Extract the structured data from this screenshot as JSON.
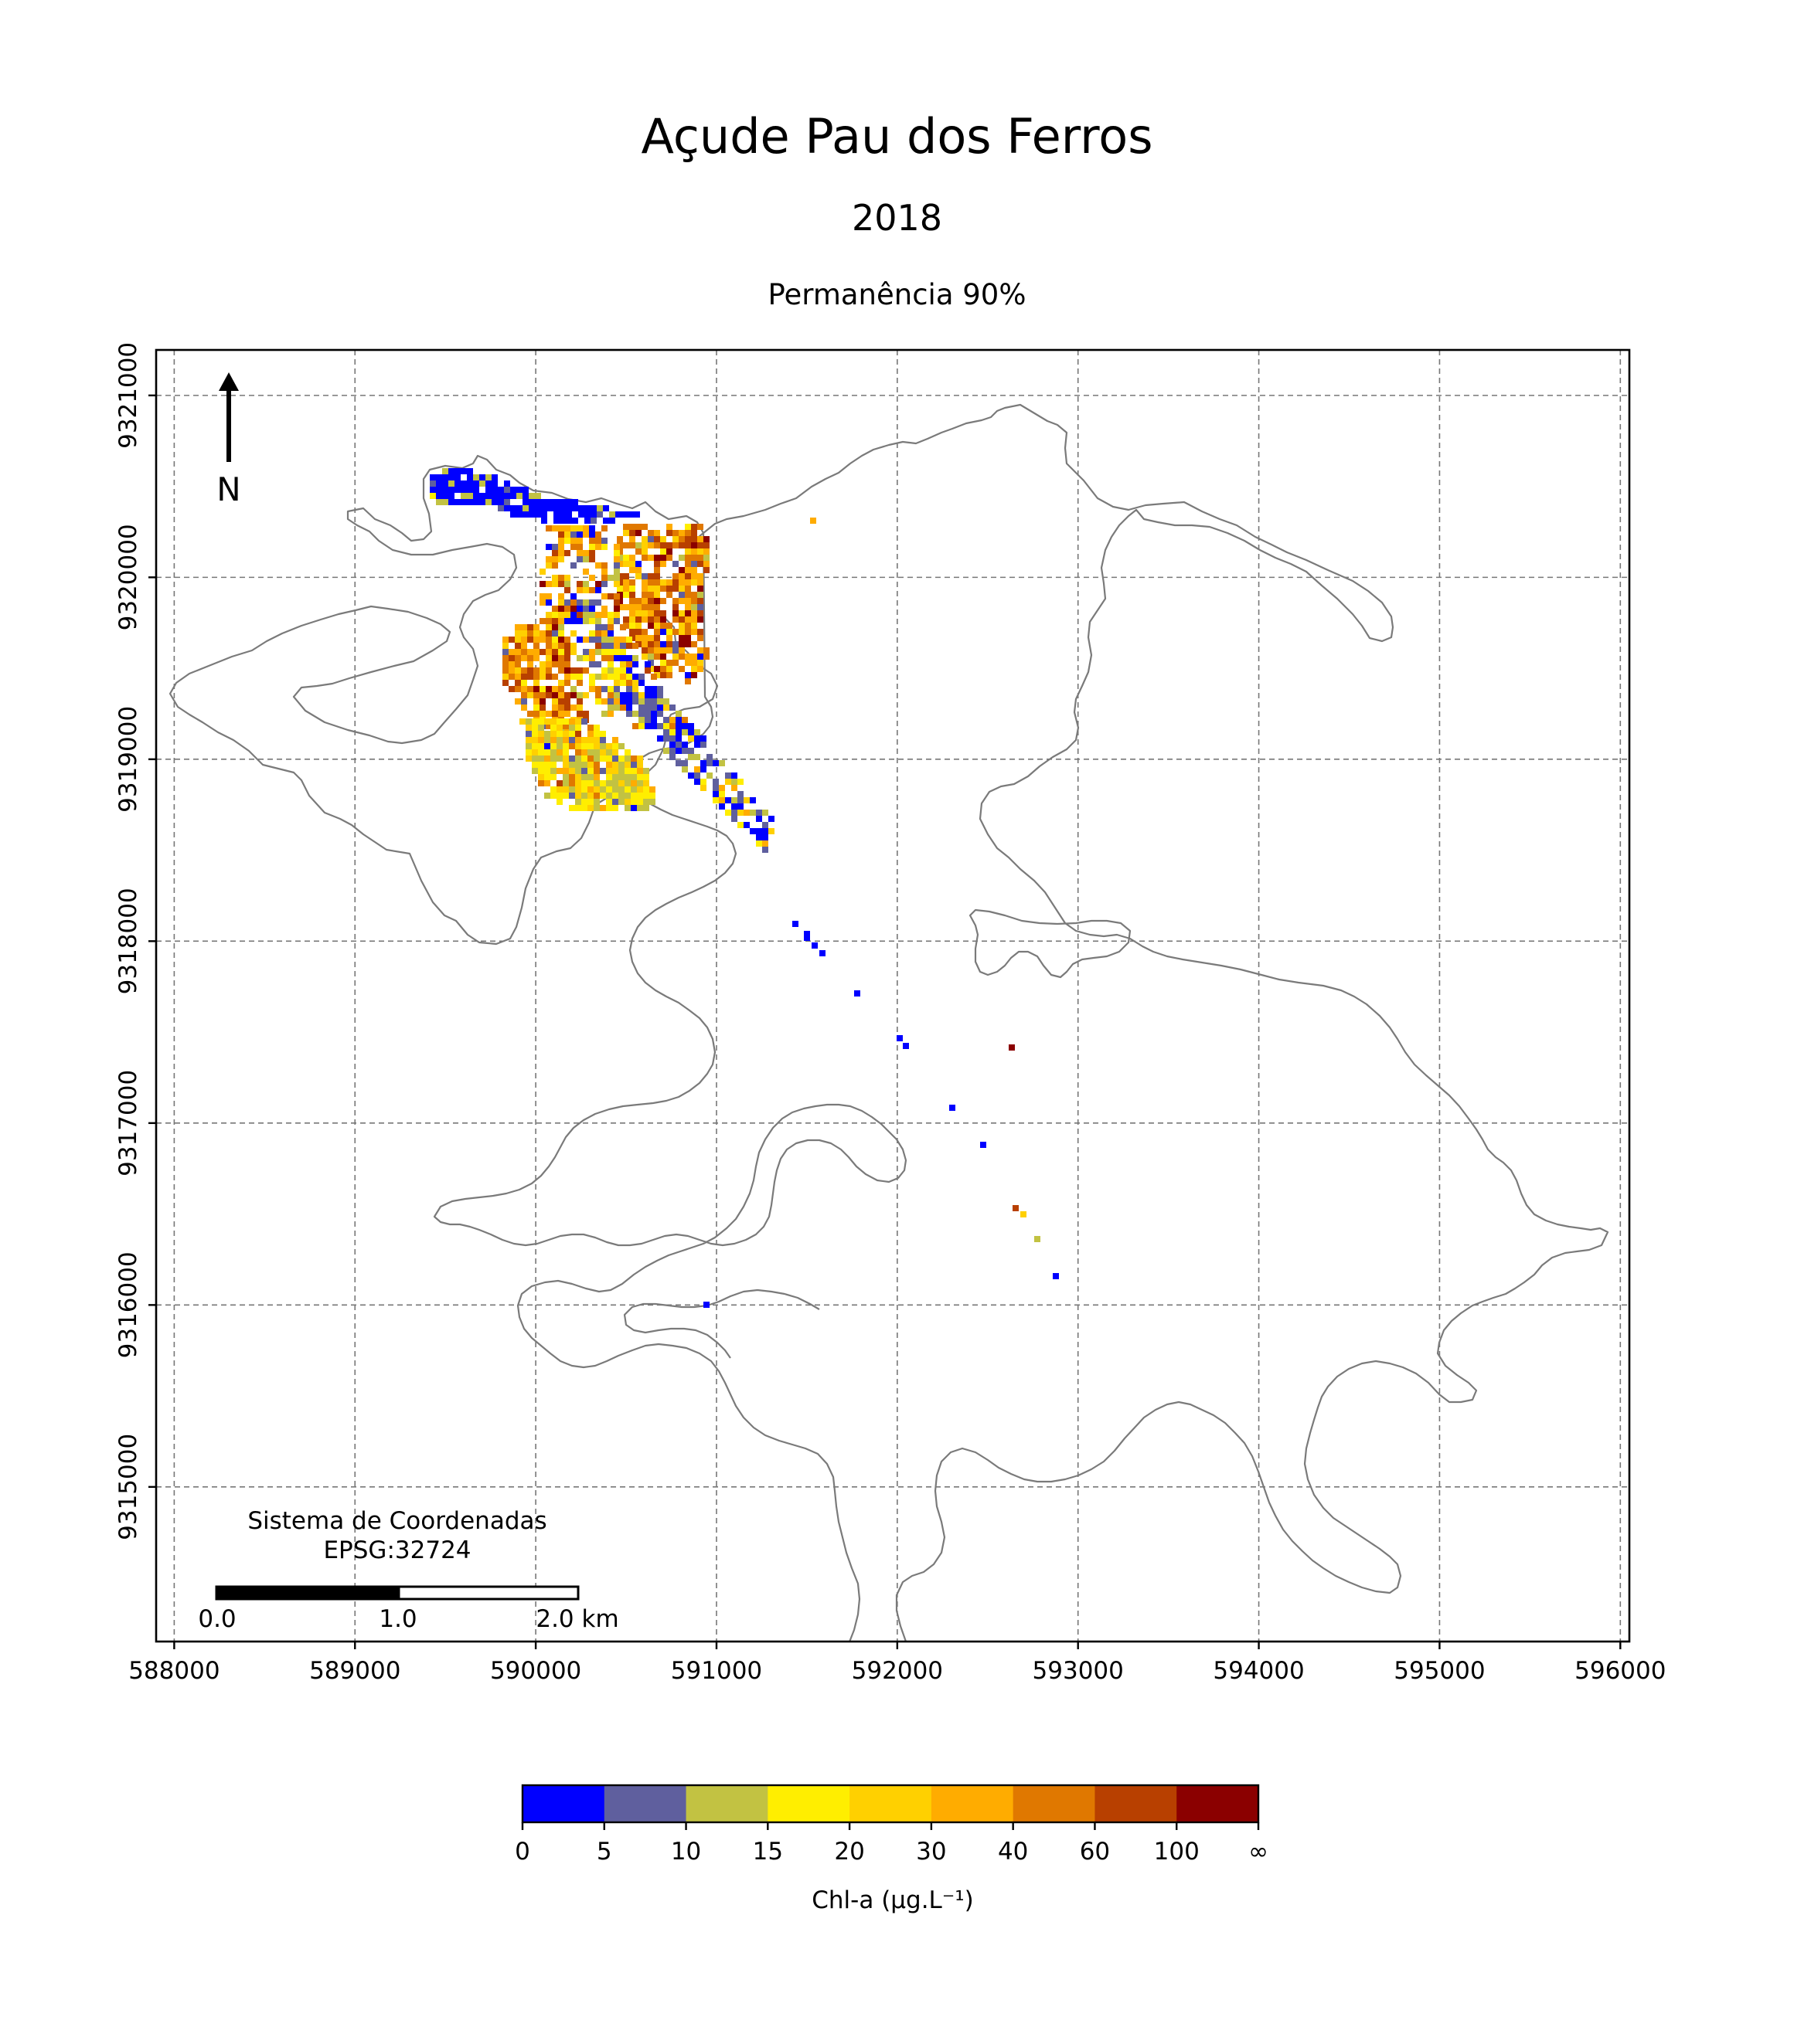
{
  "title": "Açude Pau dos Ferros",
  "year": "2018",
  "subtitle": "Permanência 90%",
  "north_label": "N",
  "crs_line1": "Sistema de Coordenadas",
  "crs_line2": "EPSG:32724",
  "scalebar": {
    "labels": [
      "0.0",
      "1.0",
      "2.0 km"
    ]
  },
  "colorbar": {
    "label": "Chl-a (μg.L⁻¹)",
    "tick_labels": [
      "0",
      "5",
      "10",
      "15",
      "20",
      "30",
      "40",
      "60",
      "100",
      "∞"
    ],
    "colors": [
      "#0000ff",
      "#5f5f9e",
      "#c2c242",
      "#ffee00",
      "#ffd000",
      "#ffac00",
      "#e07800",
      "#b84000",
      "#8b0000"
    ]
  },
  "chart_data": {
    "type": "heatmap",
    "x_ticks": [
      588000,
      589000,
      590000,
      591000,
      592000,
      593000,
      594000,
      595000,
      596000
    ],
    "y_ticks": [
      9315000,
      9316000,
      9317000,
      9318000,
      9319000,
      9320000,
      9321000
    ],
    "xlim": [
      587900,
      596050
    ],
    "ylim": [
      9314150,
      9321250
    ],
    "grid": true
  }
}
